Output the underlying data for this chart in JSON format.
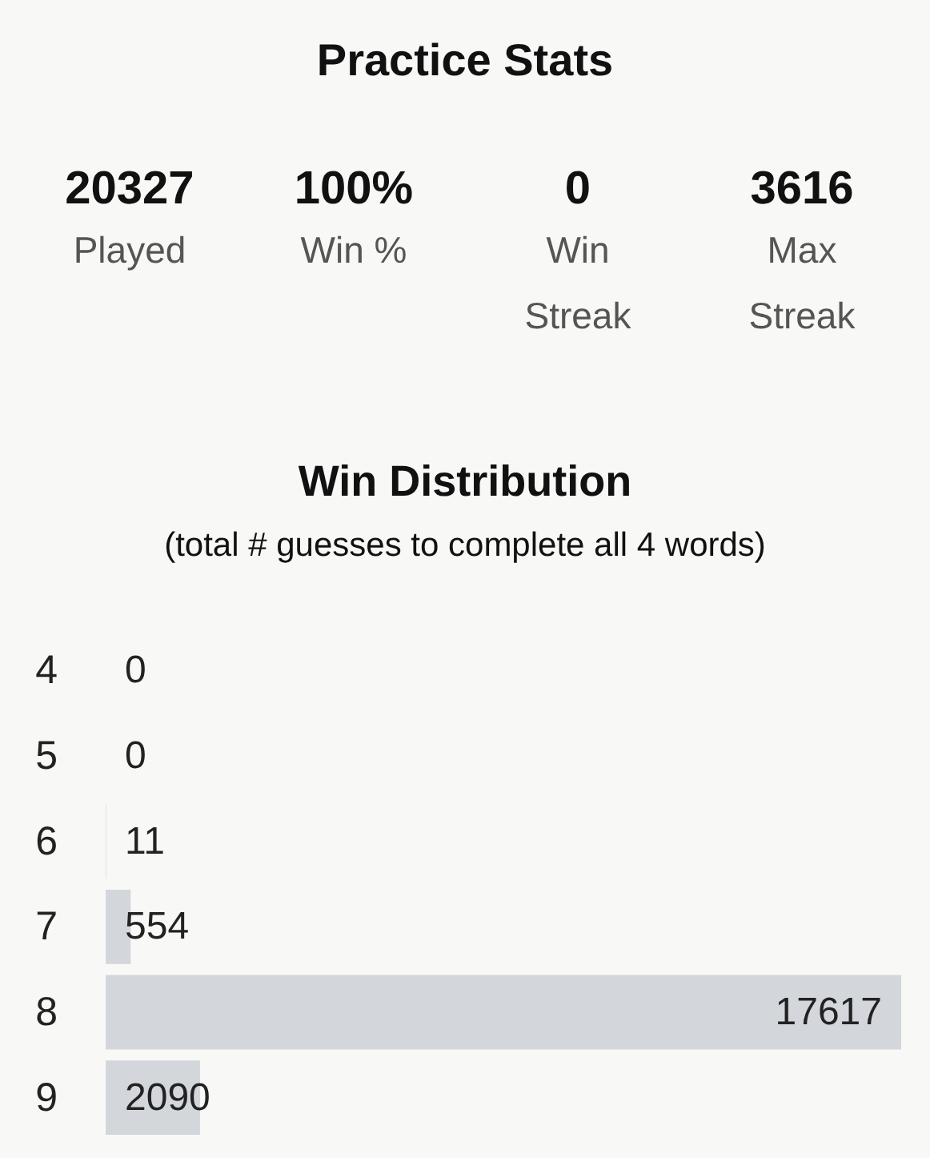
{
  "chart_data": [
    {
      "type": "other",
      "title": "Practice Stats",
      "categories": [
        "Played",
        "Win %",
        "Win Streak",
        "Max Streak"
      ],
      "value_labels": [
        "20327",
        "100%",
        "0",
        "3616"
      ]
    },
    {
      "type": "bar",
      "title": "Win Distribution",
      "subtitle": "(total # guesses to complete all 4 words)",
      "orientation": "horizontal",
      "categories": [
        "4",
        "5",
        "6",
        "7",
        "8",
        "9"
      ],
      "values": [
        0,
        0,
        11,
        554,
        17617,
        2090
      ],
      "color": "#d3d6db",
      "data_labels": true
    }
  ]
}
